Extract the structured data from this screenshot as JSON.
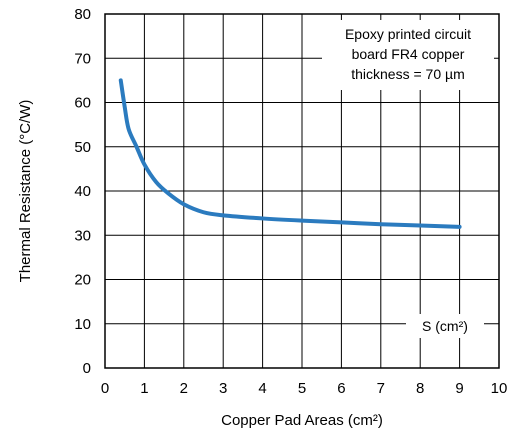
{
  "chart_data": {
    "type": "line",
    "xlabel": "Copper Pad Areas (cm²)",
    "ylabel": "Thermal Resistance (°C/W)",
    "xlim": [
      0,
      10
    ],
    "ylim": [
      0,
      80
    ],
    "x_ticks": [
      "0",
      "1",
      "2",
      "3",
      "4",
      "5",
      "6",
      "7",
      "8",
      "9",
      "10"
    ],
    "y_ticks": [
      "0",
      "10",
      "20",
      "30",
      "40",
      "50",
      "60",
      "70",
      "80"
    ],
    "grid": true,
    "annotation_lines": [
      "Epoxy printed circuit",
      "board FR4 copper",
      "thickness = 70 µm"
    ],
    "curve_label": "S (cm²)",
    "series": [
      {
        "color": "#2b7bbf",
        "x": [
          0.4,
          0.5,
          0.6,
          0.8,
          1.0,
          1.3,
          1.6,
          2.0,
          2.5,
          3.0,
          4.0,
          5.0,
          6.0,
          7.0,
          8.0,
          9.0
        ],
        "y": [
          65,
          59,
          54,
          50,
          46,
          42,
          39.5,
          37,
          35.2,
          34.5,
          33.8,
          33.3,
          32.9,
          32.5,
          32.2,
          31.9
        ]
      }
    ]
  }
}
